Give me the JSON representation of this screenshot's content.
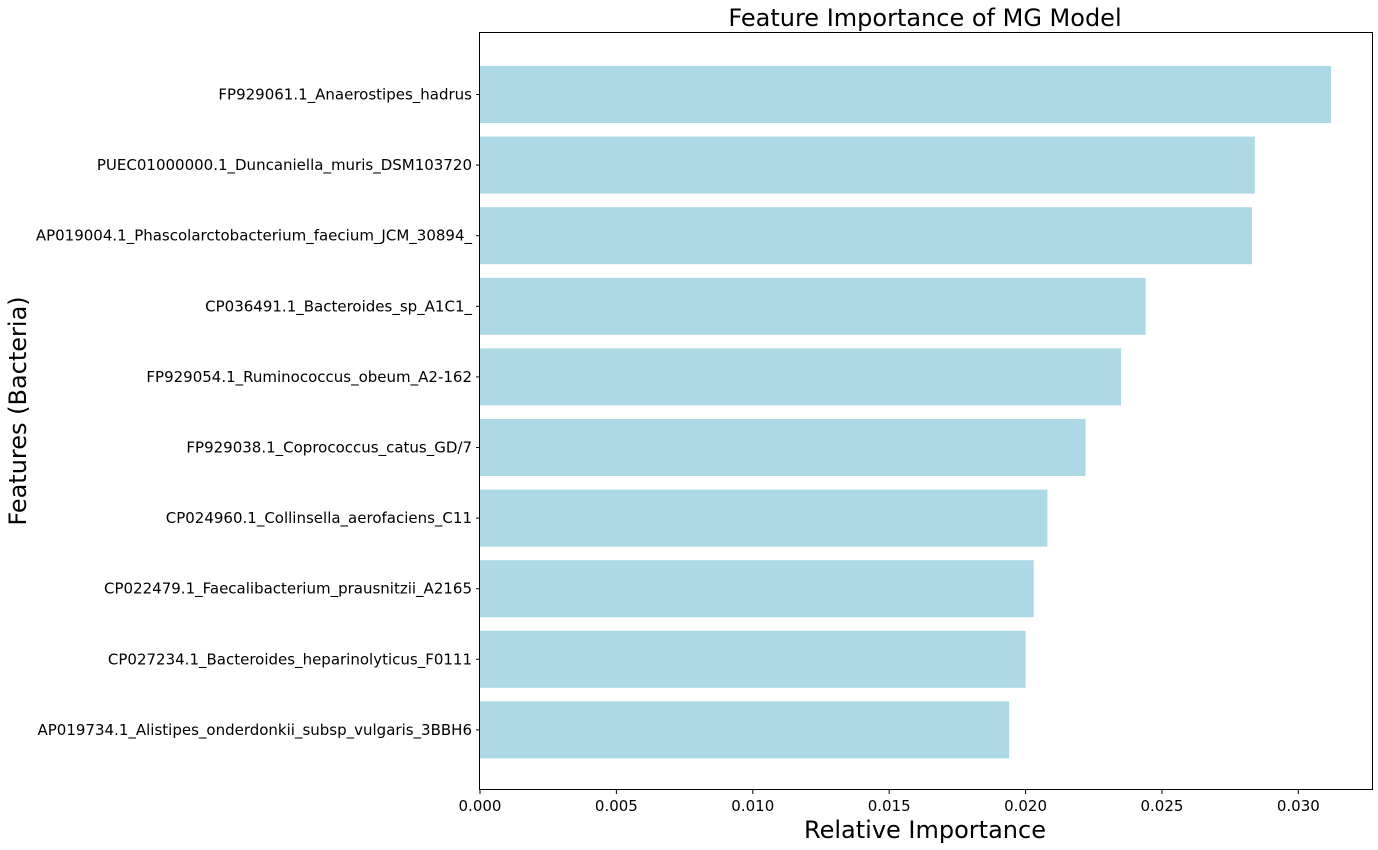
{
  "chart_data": {
    "type": "bar",
    "orientation": "horizontal",
    "title": "Feature Importance of MG Model",
    "xlabel": "Relative Importance",
    "ylabel": "Features (Bacteria)",
    "xlim": [
      0,
      0.0327
    ],
    "xticks": [
      0.0,
      0.005,
      0.01,
      0.015,
      0.02,
      0.025,
      0.03
    ],
    "xtick_labels": [
      "0.000",
      "0.005",
      "0.010",
      "0.015",
      "0.020",
      "0.025",
      "0.030"
    ],
    "grid": false,
    "legend": "none",
    "bar_color": "#add8e6",
    "categories": [
      "FP929061.1_Anaerostipes_hadrus",
      "PUEC01000000.1_Duncaniella_muris_DSM103720",
      "AP019004.1_Phascolarctobacterium_faecium_JCM_30894_",
      "CP036491.1_Bacteroides_sp_A1C1_",
      "FP929054.1_Ruminococcus_obeum_A2-162",
      "FP929038.1_Coprococcus_catus_GD/7",
      "CP024960.1_Collinsella_aerofaciens_C11",
      "CP022479.1_Faecalibacterium_prausnitzii_A2165",
      "CP027234.1_Bacteroides_heparinolyticus_F0111",
      "AP019734.1_Alistipes_onderdonkii_subsp_vulgaris_3BBH6"
    ],
    "values": [
      0.0312,
      0.0284,
      0.0283,
      0.0244,
      0.0235,
      0.0222,
      0.0208,
      0.0203,
      0.02,
      0.0194
    ]
  }
}
